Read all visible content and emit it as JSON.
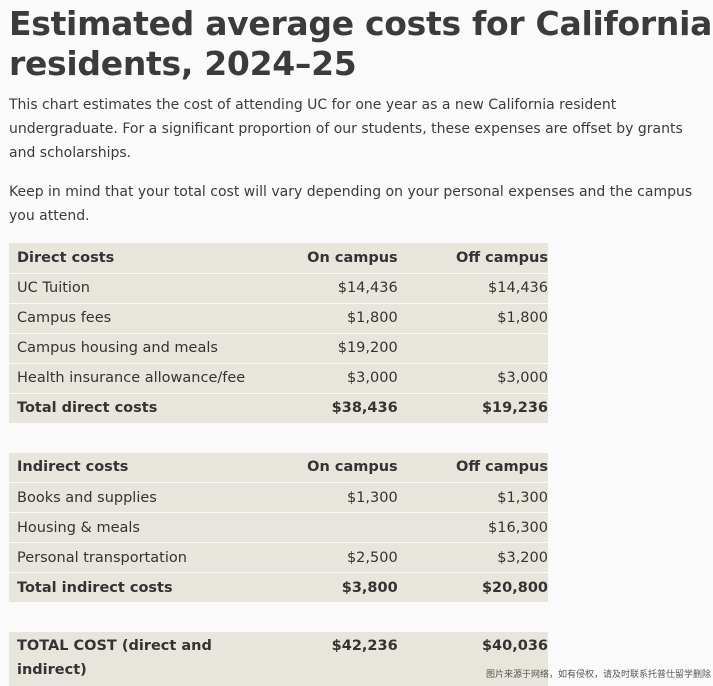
{
  "title": "Estimated average costs for California residents, 2024–25",
  "intro1": "This chart estimates the cost of attending UC for one year as a new California resident undergraduate. For a significant proportion of our students, these expenses are offset by grants and scholarships.",
  "intro2": "Keep in mind that your total cost will vary depending on your personal expenses and the campus you attend.",
  "direct": {
    "header": [
      "Direct costs",
      "On campus",
      "Off campus"
    ],
    "rows": [
      [
        "UC Tuition",
        "$14,436",
        "$14,436"
      ],
      [
        "Campus fees",
        "$1,800",
        "$1,800"
      ],
      [
        "Campus housing and meals",
        "$19,200",
        ""
      ],
      [
        "Health insurance allowance/fee",
        "$3,000",
        "$3,000"
      ]
    ],
    "total": [
      "Total direct costs",
      "$38,436",
      "$19,236"
    ]
  },
  "indirect": {
    "header": [
      "Indirect costs",
      "On campus",
      "Off campus"
    ],
    "rows": [
      [
        "Books and supplies",
        "$1,300",
        "$1,300"
      ],
      [
        "Housing & meals",
        "",
        "$16,300"
      ],
      [
        "Personal transportation",
        "$2,500",
        "$3,200"
      ]
    ],
    "total": [
      "Total indirect costs",
      "$3,800",
      "$20,800"
    ]
  },
  "grand": [
    "TOTAL COST (direct and indirect)",
    "$42,236",
    "$40,036"
  ],
  "watermark": "图片来源于网络，如有侵权，请及时联系托普仕留学删除"
}
